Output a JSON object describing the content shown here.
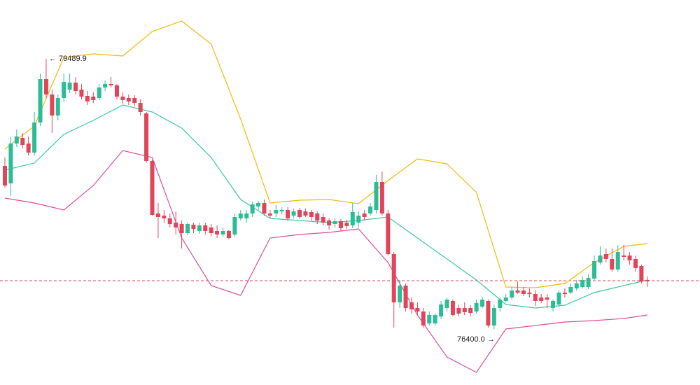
{
  "chart_data": {
    "type": "candlestick",
    "ylim": [
      75762,
      80162
    ],
    "up_color": "#2dbd96",
    "down_color": "#e0455a",
    "open": [
      78266,
      78066,
      78522,
      78586,
      78522,
      78418,
      78762,
      79258,
      79082,
      78842,
      79042,
      79138,
      79218,
      79138,
      79066,
      79058,
      79042,
      79162,
      79202,
      79186,
      79058,
      79042,
      79042,
      78986,
      78866,
      78322,
      77722,
      77698,
      77666,
      77618,
      77602,
      77498,
      77594,
      77522,
      77586,
      77562,
      77522,
      77482,
      77522,
      77482,
      77666,
      77666,
      77722,
      77802,
      77842,
      77722,
      77722,
      77746,
      77762,
      77698,
      77762,
      77746,
      77738,
      77722,
      77682,
      77642,
      77602,
      77634,
      77618,
      77586,
      77618,
      77722,
      77722,
      77762,
      78082,
      77722,
      77258,
      76706,
      76898,
      76706,
      76642,
      76602,
      76466,
      76466,
      76546,
      76642,
      76722,
      76642,
      76642,
      76642,
      76602,
      76658,
      76722,
      76442,
      76642,
      76722,
      76762,
      76842,
      76842,
      76818,
      76802,
      76762,
      76762,
      76642,
      76682,
      76818,
      76818,
      76866,
      76882,
      76882,
      76978,
      77162,
      77258,
      77202,
      77082,
      77242,
      77242,
      77202,
      77122,
      76962
    ],
    "high": [
      78362,
      78602,
      78682,
      78642,
      78602,
      78882,
      79322,
      79489.9,
      79138,
      79082,
      79322,
      79322,
      79282,
      79202,
      79122,
      79106,
      79202,
      79242,
      79282,
      79202,
      79106,
      79082,
      79074,
      79026,
      78882,
      78338,
      77842,
      77762,
      77722,
      77746,
      77642,
      77618,
      77618,
      77618,
      77618,
      77602,
      77586,
      77562,
      77538,
      77722,
      77762,
      77762,
      77858,
      77866,
      77882,
      77762,
      77818,
      77794,
      77794,
      77778,
      77786,
      77778,
      77762,
      77746,
      77722,
      77666,
      77666,
      77658,
      77650,
      77842,
      77746,
      77762,
      77842,
      78162,
      78202,
      77762,
      77282,
      76962,
      76922,
      76762,
      76706,
      76642,
      76602,
      76578,
      76722,
      76762,
      76738,
      76682,
      76706,
      76674,
      76738,
      76770,
      76738,
      76682,
      76762,
      76802,
      76882,
      76946,
      76882,
      76866,
      76842,
      76802,
      76802,
      76738,
      76842,
      76866,
      76922,
      76962,
      77002,
      77026,
      77242,
      77346,
      77322,
      77322,
      77362,
      77362,
      77282,
      77242,
      77138,
      77002
    ],
    "low": [
      78018,
      77922,
      78482,
      78466,
      78386,
      78386,
      78722,
      79042,
      78642,
      78786,
      79002,
      79098,
      79082,
      79026,
      78962,
      78986,
      79018,
      79122,
      79162,
      79026,
      78978,
      78962,
      78946,
      78842,
      78306,
      77698,
      77442,
      77618,
      77562,
      77482,
      77322,
      77474,
      77498,
      77490,
      77482,
      77458,
      77442,
      77458,
      77426,
      77458,
      77642,
      77618,
      77682,
      77762,
      77698,
      77666,
      77682,
      77714,
      77642,
      77666,
      77666,
      77682,
      77642,
      77602,
      77586,
      77538,
      77562,
      77522,
      77546,
      77554,
      77562,
      77642,
      77698,
      77722,
      77698,
      77242,
      76418,
      76642,
      76602,
      76578,
      76562,
      76418,
      76442,
      76442,
      76514,
      76602,
      76546,
      76546,
      76562,
      76546,
      76578,
      76642,
      76418,
      76400.0,
      76602,
      76706,
      76738,
      76802,
      76778,
      76762,
      76666,
      76698,
      76642,
      76602,
      76658,
      76762,
      76802,
      76842,
      76866,
      76858,
      76962,
      77138,
      77162,
      77058,
      77058,
      77186,
      77138,
      77058,
      76922,
      76882
    ],
    "close": [
      78042,
      78522,
      78602,
      78506,
      78418,
      78762,
      79258,
      79082,
      78842,
      79042,
      79226,
      79218,
      79122,
      79058,
      79002,
      79018,
      79162,
      79202,
      79186,
      79058,
      79018,
      79002,
      78986,
      78882,
      78322,
      77706,
      77682,
      77666,
      77602,
      77562,
      77498,
      77602,
      77546,
      77586,
      77522,
      77498,
      77482,
      77522,
      77442,
      77682,
      77722,
      77722,
      77826,
      77842,
      77722,
      77698,
      77762,
      77762,
      77666,
      77746,
      77682,
      77698,
      77682,
      77642,
      77618,
      77586,
      77634,
      77554,
      77578,
      77738,
      77698,
      77682,
      77802,
      78082,
      77722,
      77258,
      76706,
      76898,
      76642,
      76626,
      76602,
      76442,
      76562,
      76562,
      76682,
      76738,
      76562,
      76578,
      76594,
      76586,
      76698,
      76738,
      76442,
      76642,
      76738,
      76762,
      76842,
      76818,
      76802,
      76802,
      76722,
      76722,
      76738,
      76722,
      76818,
      76802,
      76882,
      76922,
      76962,
      76986,
      77178,
      77242,
      77202,
      77082,
      77282,
      77226,
      77186,
      77098,
      76946,
      76946
    ],
    "bands": [
      {
        "color": "#f0b90b",
        "x": [
          0,
          5,
          10,
          15,
          20,
          25,
          30,
          35,
          40,
          45,
          50,
          55,
          60,
          65,
          70,
          75,
          80,
          85,
          90,
          95,
          100,
          105,
          109
        ],
        "values": [
          78458,
          78722,
          79506,
          79546,
          79522,
          79802,
          79922,
          79658,
          78802,
          77842,
          77874,
          77882,
          77834,
          78098,
          78346,
          78290,
          77962,
          76882,
          76874,
          76922,
          77162,
          77346,
          77378
        ]
      },
      {
        "color": "#3cc8a0",
        "x": [
          0,
          5,
          10,
          15,
          20,
          25,
          30,
          35,
          40,
          45,
          50,
          55,
          60,
          65,
          70,
          75,
          80,
          85,
          90,
          95,
          100,
          105,
          109
        ],
        "values": [
          78218,
          78298,
          78626,
          78786,
          78962,
          78882,
          78698,
          78362,
          77882,
          77666,
          77642,
          77618,
          77642,
          77682,
          77442,
          77202,
          76962,
          76682,
          76642,
          76674,
          76818,
          76898,
          76962
        ]
      },
      {
        "color": "#d94f9c",
        "x": [
          0,
          5,
          10,
          15,
          20,
          25,
          30,
          35,
          40,
          45,
          50,
          55,
          60,
          65,
          70,
          75,
          80,
          85,
          90,
          95,
          100,
          105,
          109
        ],
        "values": [
          77898,
          77842,
          77762,
          78042,
          78442,
          78362,
          77442,
          76898,
          76786,
          77442,
          77482,
          77506,
          77546,
          77162,
          76562,
          76082,
          75906,
          76402,
          76442,
          76482,
          76498,
          76522,
          76562
        ]
      }
    ],
    "price_line": 76954,
    "price_line_color": "#e0455a",
    "high_label": "← 79489.9",
    "low_label": "76400.0 →"
  }
}
